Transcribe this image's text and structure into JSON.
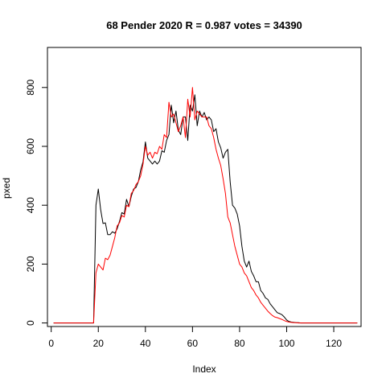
{
  "chart_data": {
    "type": "line",
    "title": "68 Pender 2020 R = 0.987 votes = 34390",
    "xlabel": "Index",
    "ylabel": "pxed",
    "xlim": [
      -1.6,
      131.6
    ],
    "ylim": [
      -12,
      936
    ],
    "x_ticks": [
      0,
      20,
      40,
      60,
      80,
      100,
      120
    ],
    "y_ticks": [
      0,
      200,
      400,
      600,
      800
    ],
    "grid": false,
    "series": [
      {
        "color": "#000000",
        "values": [
          0,
          0,
          0,
          0,
          0,
          0,
          0,
          0,
          0,
          0,
          0,
          0,
          0,
          0,
          0,
          0,
          0,
          0,
          400,
          455,
          385,
          338,
          340,
          300,
          300,
          310,
          305,
          320,
          345,
          375,
          370,
          420,
          395,
          430,
          455,
          460,
          480,
          520,
          548,
          615,
          560,
          550,
          540,
          550,
          540,
          550,
          585,
          580,
          620,
          640,
          740,
          680,
          720,
          655,
          640,
          700,
          700,
          620,
          740,
          720,
          775,
          670,
          720,
          700,
          715,
          690,
          700,
          690,
          650,
          660,
          615,
          595,
          560,
          580,
          590,
          480,
          400,
          390,
          370,
          330,
          260,
          210,
          190,
          210,
          175,
          160,
          140,
          140,
          110,
          100,
          85,
          80,
          65,
          55,
          45,
          35,
          32,
          28,
          20,
          10,
          5,
          3,
          2,
          1,
          1,
          0,
          0,
          0,
          0,
          0,
          0,
          0,
          0,
          0,
          0,
          0,
          0,
          0,
          0,
          0,
          0,
          0,
          0,
          0,
          0,
          0,
          0,
          0,
          0,
          0
        ]
      },
      {
        "color": "#ff0000",
        "values": [
          0,
          0,
          0,
          0,
          0,
          0,
          0,
          0,
          0,
          0,
          0,
          0,
          0,
          0,
          0,
          0,
          0,
          0,
          170,
          200,
          190,
          180,
          220,
          215,
          230,
          260,
          290,
          330,
          340,
          365,
          360,
          400,
          395,
          440,
          450,
          470,
          480,
          500,
          540,
          600,
          570,
          580,
          560,
          580,
          575,
          600,
          590,
          640,
          630,
          750,
          700,
          710,
          680,
          650,
          670,
          700,
          630,
          760,
          700,
          800,
          690,
          720,
          710,
          700,
          700,
          700,
          670,
          660,
          630,
          590,
          560,
          535,
          490,
          440,
          360,
          340,
          300,
          260,
          230,
          200,
          190,
          170,
          160,
          140,
          120,
          110,
          95,
          85,
          70,
          60,
          50,
          40,
          32,
          25,
          20,
          18,
          15,
          12,
          8,
          5,
          3,
          2,
          1,
          1,
          0,
          0,
          0,
          0,
          0,
          0,
          0,
          0,
          0,
          0,
          0,
          0,
          0,
          0,
          0,
          0,
          0,
          0,
          0,
          0,
          0,
          0,
          0,
          0,
          0,
          0
        ]
      }
    ]
  }
}
